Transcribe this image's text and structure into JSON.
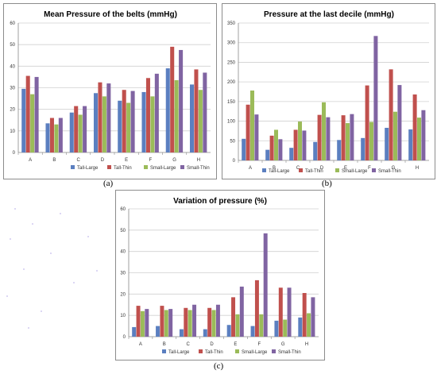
{
  "figure": {
    "caption_a": "(a)",
    "caption_b": "(b)",
    "caption_c": "(c)"
  },
  "colors": {
    "tall_large": "#5b7fc0",
    "tall_thin": "#c0504d",
    "small_large": "#9bbb59",
    "small_thin": "#8064a2",
    "grid": "#d0d0d0",
    "axis": "#888888"
  },
  "chart_data": [
    {
      "type": "bar",
      "title": "Mean Pressure of the belts (mmHg)",
      "categories": [
        "A",
        "B",
        "C",
        "D",
        "E",
        "F",
        "G",
        "H"
      ],
      "ylim": [
        0,
        60
      ],
      "yticks": [
        0,
        10,
        20,
        30,
        40,
        50,
        60
      ],
      "grid": true,
      "legend": "bottom",
      "series": [
        {
          "name": "Tall-Large",
          "values": [
            29.5,
            13.5,
            18.5,
            27.5,
            24,
            28,
            39,
            31.5
          ]
        },
        {
          "name": "Tall-Thin",
          "values": [
            35.5,
            16,
            21.5,
            32.5,
            29,
            34.5,
            49,
            38.5
          ]
        },
        {
          "name": "Small-Large",
          "values": [
            27,
            13,
            17.5,
            26,
            23,
            26,
            33.5,
            29
          ]
        },
        {
          "name": "Small-Thin",
          "values": [
            35,
            16,
            21.5,
            32,
            28.5,
            36.5,
            47.5,
            37
          ]
        }
      ]
    },
    {
      "type": "bar",
      "title": "Pressure at the last decile (mmHg)",
      "categories": [
        "A",
        "B",
        "C",
        "D",
        "E",
        "F",
        "G",
        "H"
      ],
      "ylim": [
        0,
        350
      ],
      "yticks": [
        0,
        50,
        100,
        150,
        200,
        250,
        300,
        350
      ],
      "grid": true,
      "legend": "bottom",
      "series": [
        {
          "name": "Tall-Large",
          "values": [
            55,
            27,
            32,
            47,
            52,
            57,
            83,
            79
          ]
        },
        {
          "name": "Tall-Thin",
          "values": [
            142,
            63,
            78,
            116,
            115,
            191,
            232,
            168
          ]
        },
        {
          "name": "Small-Large",
          "values": [
            178,
            78,
            99,
            148,
            95,
            98,
            124,
            109
          ]
        },
        {
          "name": "Small-Thin",
          "values": [
            117,
            54,
            76,
            110,
            118,
            317,
            192,
            128
          ]
        }
      ]
    },
    {
      "type": "bar",
      "title": "Variation of pressure (%)",
      "categories": [
        "A",
        "B",
        "C",
        "D",
        "E",
        "F",
        "G",
        "H"
      ],
      "ylim": [
        0,
        60
      ],
      "yticks": [
        0,
        10,
        20,
        30,
        40,
        50,
        60
      ],
      "grid": true,
      "legend": "bottom",
      "series": [
        {
          "name": "Tall-Large",
          "values": [
            4.5,
            5,
            3.5,
            3.5,
            5.5,
            5,
            7.5,
            9
          ]
        },
        {
          "name": "Tall-Thin",
          "values": [
            14.5,
            14.5,
            13.5,
            13.5,
            18.5,
            26.5,
            23,
            20.5
          ]
        },
        {
          "name": "Small-Large",
          "values": [
            12,
            12.5,
            12.5,
            12.5,
            10.5,
            10.5,
            8,
            11
          ]
        },
        {
          "name": "Small-Thin",
          "values": [
            13,
            13,
            15,
            15,
            23.5,
            48.5,
            23,
            18.5
          ]
        }
      ]
    }
  ]
}
